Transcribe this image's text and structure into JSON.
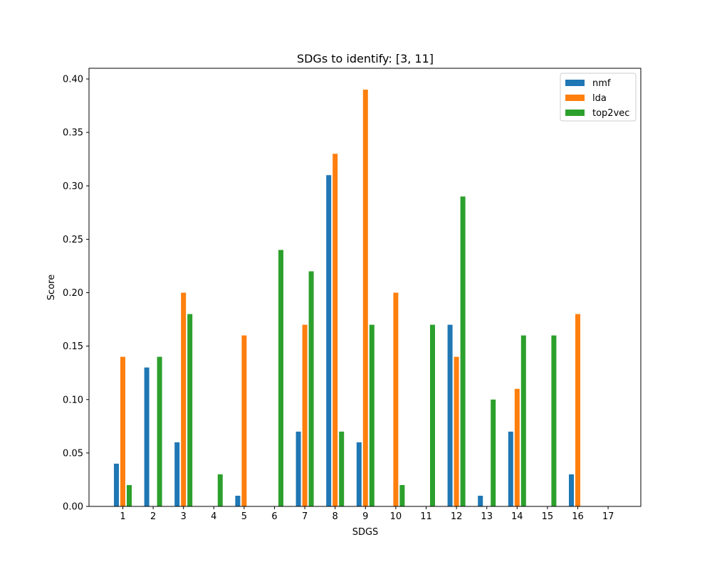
{
  "chart_data": {
    "type": "bar",
    "title": "SDGs to identify: [3, 11]",
    "xlabel": "SDGS",
    "ylabel": "Score",
    "ylim": [
      0,
      0.41
    ],
    "yticks": [
      "0.00",
      "0.05",
      "0.10",
      "0.15",
      "0.20",
      "0.25",
      "0.30",
      "0.35",
      "0.40"
    ],
    "categories": [
      "1",
      "2",
      "3",
      "4",
      "5",
      "6",
      "7",
      "8",
      "9",
      "10",
      "11",
      "12",
      "13",
      "14",
      "15",
      "16",
      "17"
    ],
    "series": [
      {
        "name": "nmf",
        "color": "#1f77b4",
        "values": [
          0.04,
          0.13,
          0.06,
          0,
          0.01,
          0,
          0.07,
          0.31,
          0.06,
          0,
          0,
          0.17,
          0.01,
          0.07,
          0,
          0.03,
          0
        ]
      },
      {
        "name": "lda",
        "color": "#ff7f0e",
        "values": [
          0.14,
          0,
          0.2,
          0,
          0.16,
          0,
          0.17,
          0.33,
          0.39,
          0.2,
          0,
          0.14,
          0,
          0.11,
          0,
          0.18,
          0
        ]
      },
      {
        "name": "top2vec",
        "color": "#2ca02c",
        "values": [
          0.02,
          0.14,
          0.18,
          0.03,
          0,
          0.24,
          0.22,
          0.07,
          0.17,
          0.02,
          0.17,
          0.29,
          0.1,
          0.16,
          0.16,
          0,
          0
        ]
      }
    ],
    "legend_position": "top-right",
    "grid": false
  }
}
